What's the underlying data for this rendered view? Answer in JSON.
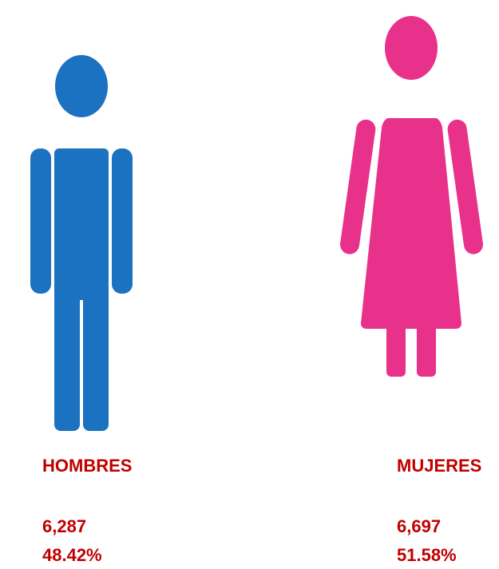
{
  "figures": [
    {
      "label": "HOMBRES",
      "count": "6,287",
      "percent": "48.42%"
    },
    {
      "label": "MUJERES",
      "count": "6,697",
      "percent": "51.58%"
    }
  ]
}
